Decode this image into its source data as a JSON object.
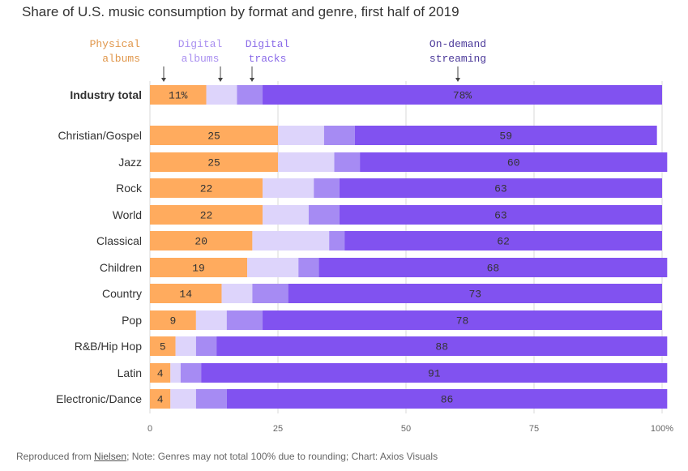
{
  "title": "Share of U.S. music consumption by format and genre, first half of 2019",
  "footer": {
    "prefix": "Reproduced from ",
    "source_link": "Nielsen",
    "suffix": "; Note: Genres may not total 100% due to rounding; Chart: Axios Visuals"
  },
  "legend": [
    {
      "lines": [
        "Physical",
        "albums"
      ],
      "color": "#e0964a",
      "series": "Physical albums"
    },
    {
      "lines": [
        "Digital",
        "albums"
      ],
      "color": "#a98ff0",
      "series": "Digital albums"
    },
    {
      "lines": [
        "Digital",
        "tracks"
      ],
      "color": "#8a6be8",
      "series": "Digital tracks"
    },
    {
      "lines": [
        "On-demand",
        "streaming"
      ],
      "color": "#4c3a9a",
      "series": "On-demand streaming"
    }
  ],
  "chart_data": {
    "type": "bar",
    "orientation": "horizontal",
    "stacked": true,
    "title": "Share of U.S. music consumption by format and genre, first half of 2019",
    "xlim": [
      0,
      100
    ],
    "x_ticks": [
      "0",
      "25",
      "50",
      "75",
      "100%"
    ],
    "x_tick_values": [
      0,
      25,
      50,
      75,
      100
    ],
    "grid": true,
    "legend_position": "top",
    "categories": [
      "Industry total",
      "Christian/Gospel",
      "Jazz",
      "Rock",
      "World",
      "Classical",
      "Children",
      "Country",
      "Pop",
      "R&B/Hip Hop",
      "Latin",
      "Electronic/Dance"
    ],
    "category_emphasis": [
      "Industry total"
    ],
    "series": [
      {
        "name": "Physical albums",
        "color": "#ffab5e",
        "values": [
          11,
          25,
          25,
          22,
          22,
          20,
          19,
          14,
          9,
          5,
          4,
          4
        ],
        "labels": [
          "11%",
          "25",
          "25",
          "22",
          "22",
          "20",
          "19",
          "14",
          "9",
          "5",
          "4",
          "4"
        ]
      },
      {
        "name": "Digital albums",
        "color": "#ddd4fb",
        "values": [
          6,
          9,
          11,
          10,
          9,
          15,
          10,
          6,
          6,
          4,
          2,
          5
        ]
      },
      {
        "name": "Digital tracks",
        "color": "#a68bf3",
        "values": [
          5,
          6,
          5,
          5,
          6,
          3,
          4,
          7,
          7,
          4,
          4,
          6
        ]
      },
      {
        "name": "On-demand streaming",
        "color": "#8152f0",
        "values": [
          78,
          59,
          60,
          63,
          63,
          62,
          68,
          73,
          78,
          88,
          91,
          86
        ],
        "labels": [
          "78%",
          "59",
          "60",
          "63",
          "63",
          "62",
          "68",
          "73",
          "78",
          "88",
          "91",
          "86"
        ]
      }
    ]
  }
}
